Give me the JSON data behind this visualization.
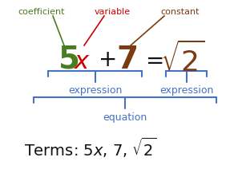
{
  "bg_color": "#ffffff",
  "label_coefficient": "coefficient",
  "label_variable": "variable",
  "label_constant": "constant",
  "color_coefficient": "#4a7c20",
  "color_variable": "#cc0000",
  "color_constant": "#7b3a10",
  "color_5": "#4a7c20",
  "color_x": "#cc0000",
  "color_plus": "#111111",
  "color_7": "#7b3a10",
  "color_eq": "#111111",
  "color_sqrt2": "#7b3a10",
  "color_brace": "#4472c4",
  "label_expression1": "expression",
  "label_expression2": "expression",
  "label_equation": "equation",
  "figsize": [
    2.97,
    2.12
  ],
  "dpi": 100
}
